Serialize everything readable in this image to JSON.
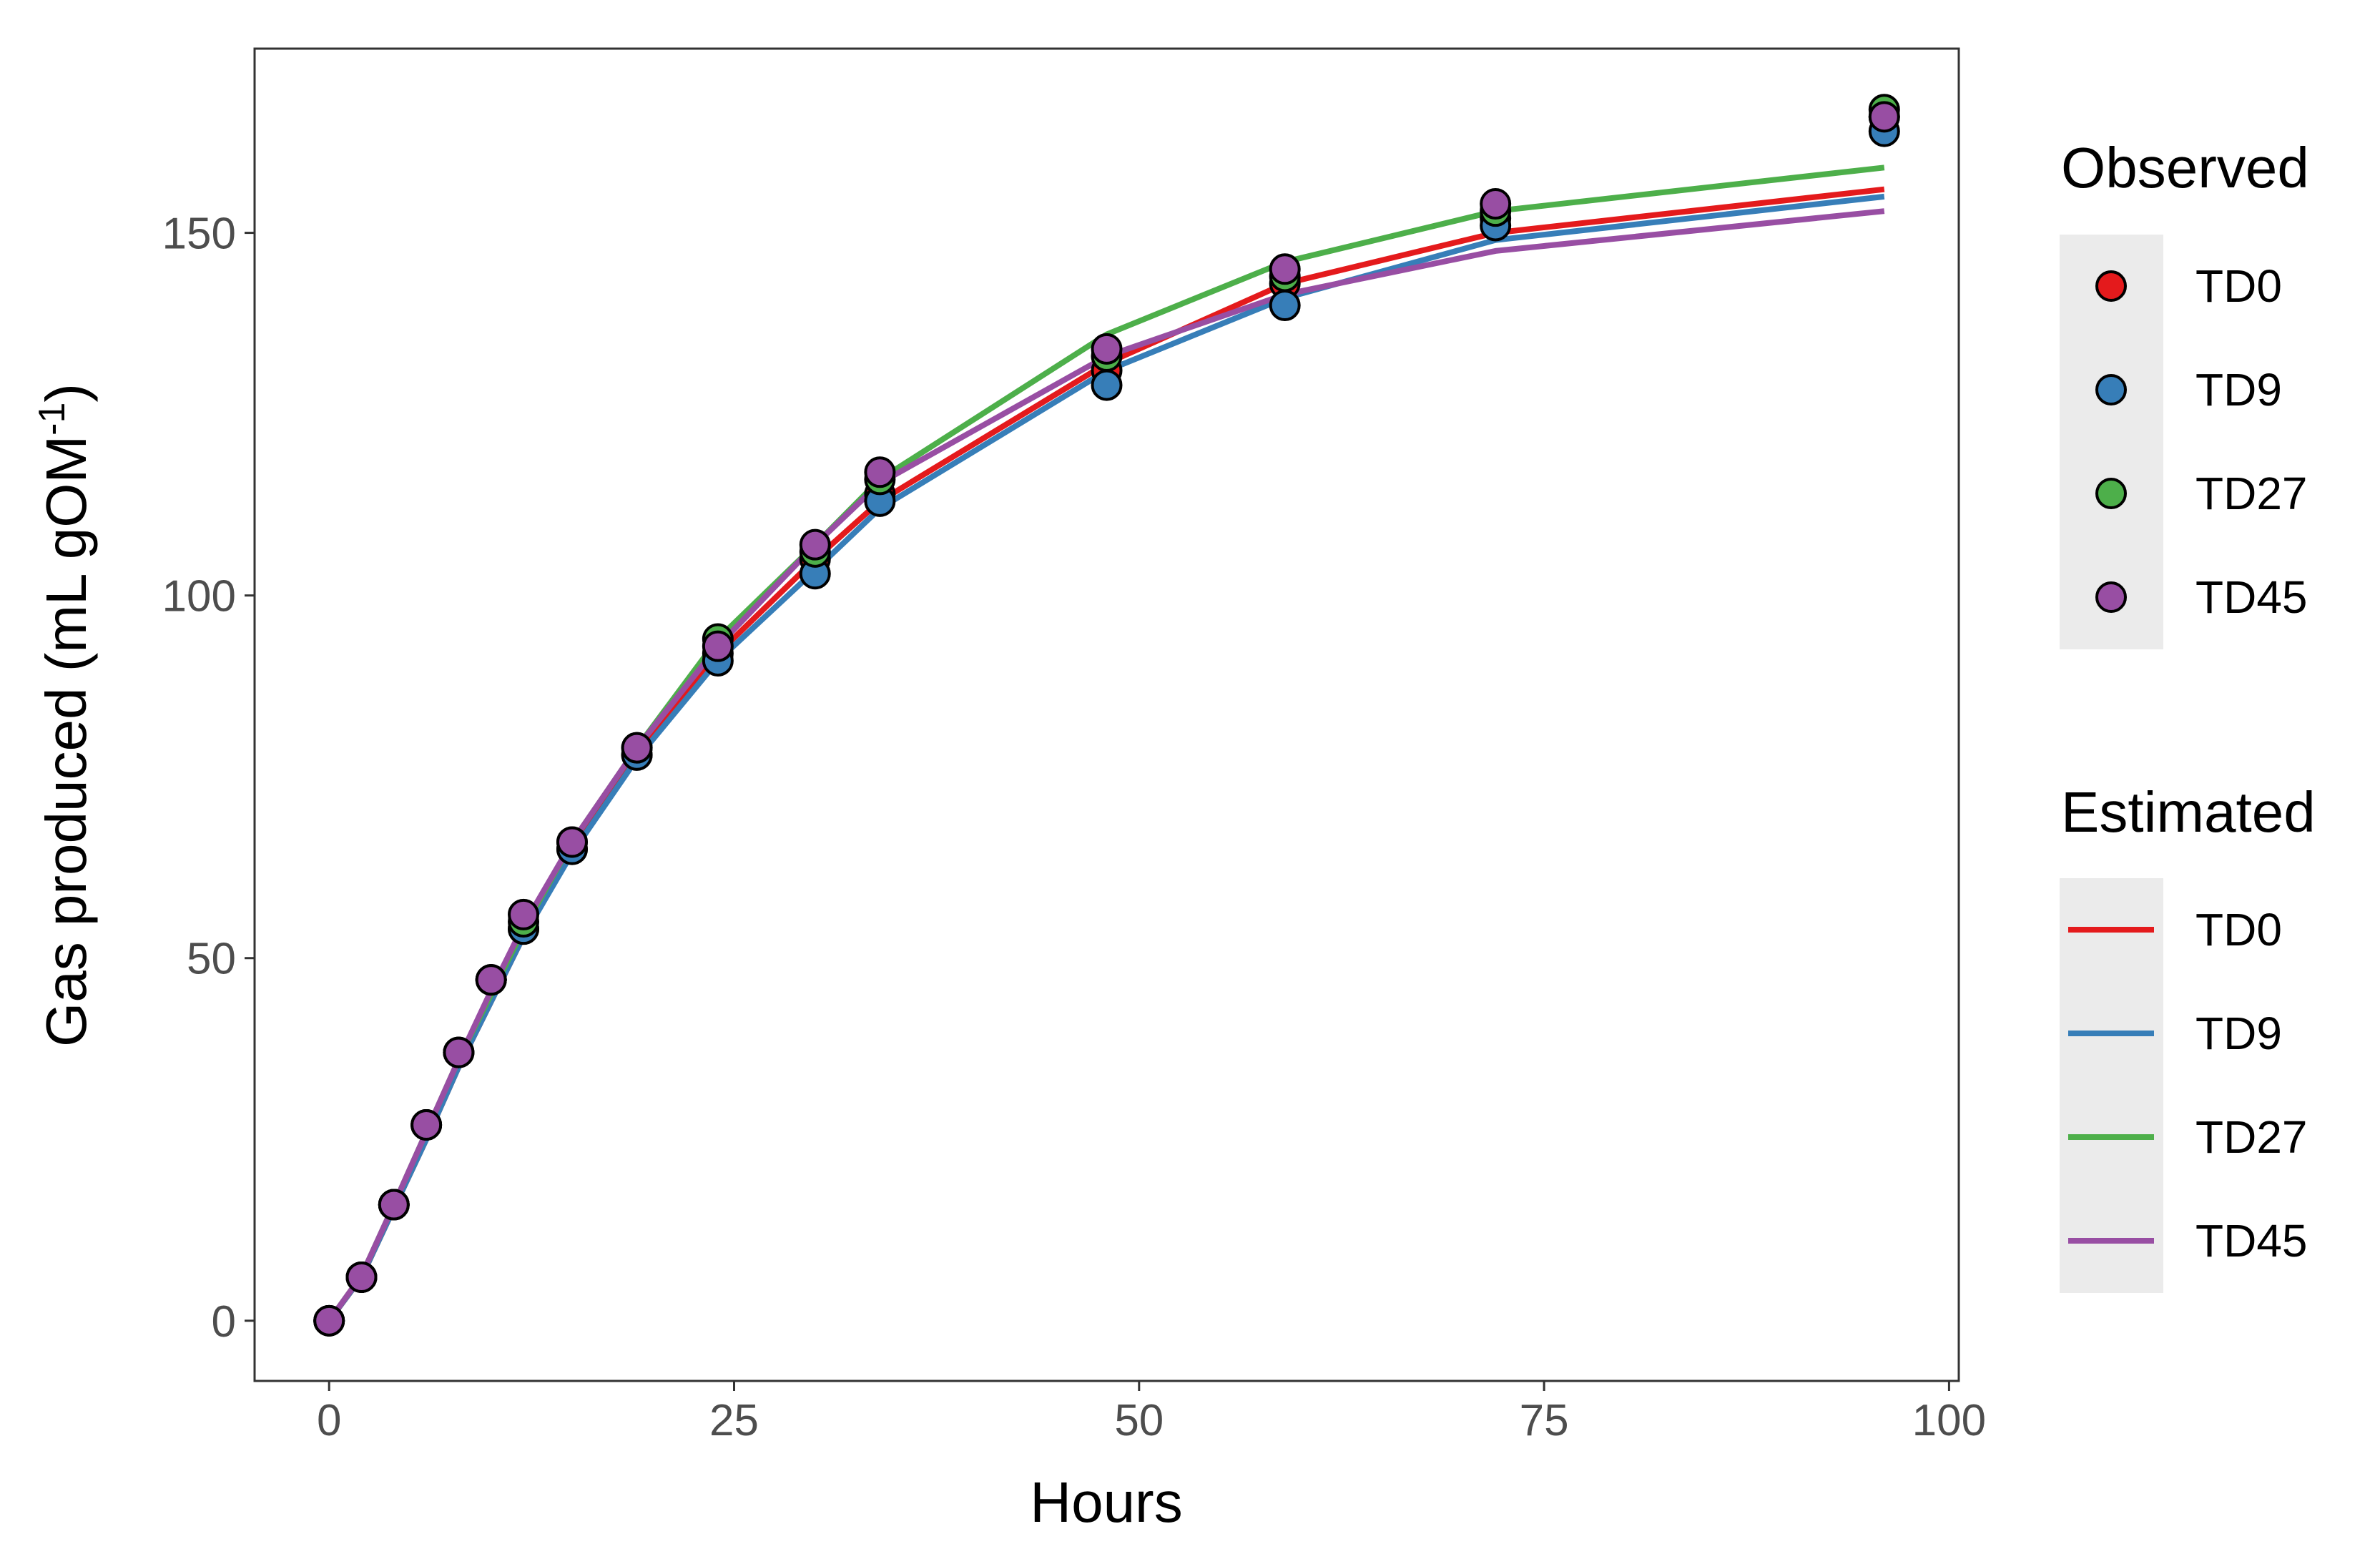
{
  "chart_data": {
    "type": "line",
    "xlabel": "Hours",
    "ylabel": "Gas produced (mL gOM",
    "ylabel_superscript": "-1",
    "ylabel_close": ")",
    "xlim": [
      -4.6,
      100.6
    ],
    "ylim": [
      -8.3,
      175.4
    ],
    "xticks": [
      0,
      25,
      50,
      75,
      100
    ],
    "yticks": [
      0,
      50,
      100,
      150
    ],
    "grid": false,
    "legend_position": "right",
    "x": [
      0,
      2,
      4,
      6,
      8,
      10,
      12,
      15,
      19,
      24,
      30,
      34,
      48,
      59,
      72,
      96
    ],
    "observed": {
      "legend_title": "Observed",
      "series": [
        {
          "name": "TD0",
          "color": "#e41a1c",
          "values": [
            0,
            6,
            16,
            27,
            37,
            47,
            54,
            65,
            78,
            92,
            105,
            114,
            131,
            143,
            152,
            166
          ]
        },
        {
          "name": "TD9",
          "color": "#377eb8",
          "values": [
            0,
            6,
            16,
            27,
            37,
            47,
            54,
            65,
            78,
            91,
            103,
            113,
            129,
            140,
            151,
            164
          ]
        },
        {
          "name": "TD27",
          "color": "#4daf4a",
          "values": [
            0,
            6,
            16,
            27,
            37,
            47,
            55,
            66,
            79,
            94,
            106,
            116,
            133,
            144,
            153,
            167
          ]
        },
        {
          "name": "TD45",
          "color": "#984ea3",
          "values": [
            0,
            6,
            16,
            27,
            37,
            47,
            56,
            66,
            79,
            93,
            107,
            117,
            134,
            145,
            154,
            166
          ]
        }
      ]
    },
    "estimated": {
      "legend_title": "Estimated",
      "series": [
        {
          "name": "TD0",
          "color": "#e41a1c",
          "values": [
            0,
            6,
            15.5,
            25,
            35,
            44,
            53,
            65,
            78,
            92,
            105,
            113,
            132,
            143,
            150,
            156
          ]
        },
        {
          "name": "TD9",
          "color": "#377eb8",
          "values": [
            0,
            6,
            15.5,
            25,
            35,
            44,
            53,
            64.5,
            77.5,
            91,
            103.5,
            112,
            131,
            141,
            149,
            155
          ]
        },
        {
          "name": "TD27",
          "color": "#4daf4a",
          "values": [
            0,
            6.2,
            16,
            26,
            36,
            45,
            54,
            66,
            79,
            94,
            107,
            116,
            136,
            146,
            153,
            159
          ]
        },
        {
          "name": "TD45",
          "color": "#984ea3",
          "values": [
            0,
            6.2,
            16,
            26,
            36,
            45.5,
            54.5,
            66,
            79,
            93,
            107,
            115.5,
            133,
            141.5,
            147.5,
            153
          ]
        }
      ]
    }
  }
}
